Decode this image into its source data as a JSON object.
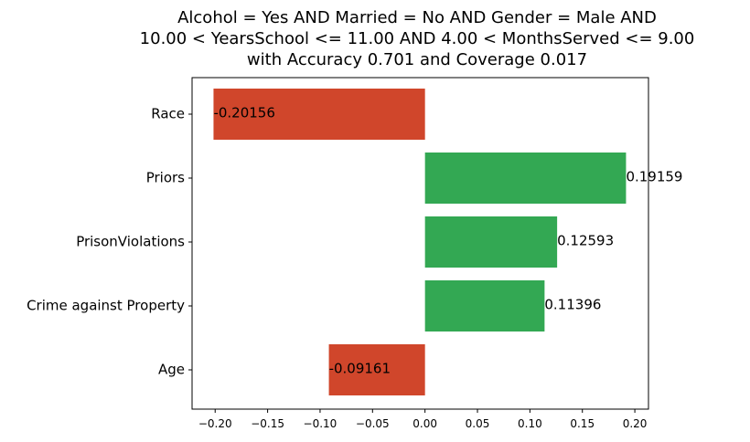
{
  "chart_data": {
    "type": "bar",
    "orientation": "horizontal",
    "title_lines": [
      "Alcohol = Yes AND Married = No AND Gender = Male AND",
      "10.00 < YearsSchool <= 11.00 AND 4.00 < MonthsServed <= 9.00",
      "with Accuracy 0.701 and Coverage 0.017"
    ],
    "categories": [
      "Race",
      "Priors",
      "PrisonViolations",
      "Crime against Property",
      "Age"
    ],
    "values": [
      -0.20156,
      0.19159,
      0.12593,
      0.11396,
      -0.09161
    ],
    "value_labels": [
      "-0.20156",
      "0.19159",
      "0.12593",
      "0.11396",
      "-0.09161"
    ],
    "xlim": [
      -0.222,
      0.213
    ],
    "xticks": [
      -0.2,
      -0.15,
      -0.1,
      -0.05,
      0.0,
      0.05,
      0.1,
      0.15,
      0.2
    ],
    "xtick_labels": [
      "−0.20",
      "−0.15",
      "−0.10",
      "−0.05",
      "0.00",
      "0.05",
      "0.10",
      "0.15",
      "0.20"
    ],
    "xlabel": "",
    "ylabel": "",
    "grid": false,
    "colors": {
      "positive": "#33a853",
      "negative": "#d0462b",
      "axis": "#000000"
    }
  }
}
